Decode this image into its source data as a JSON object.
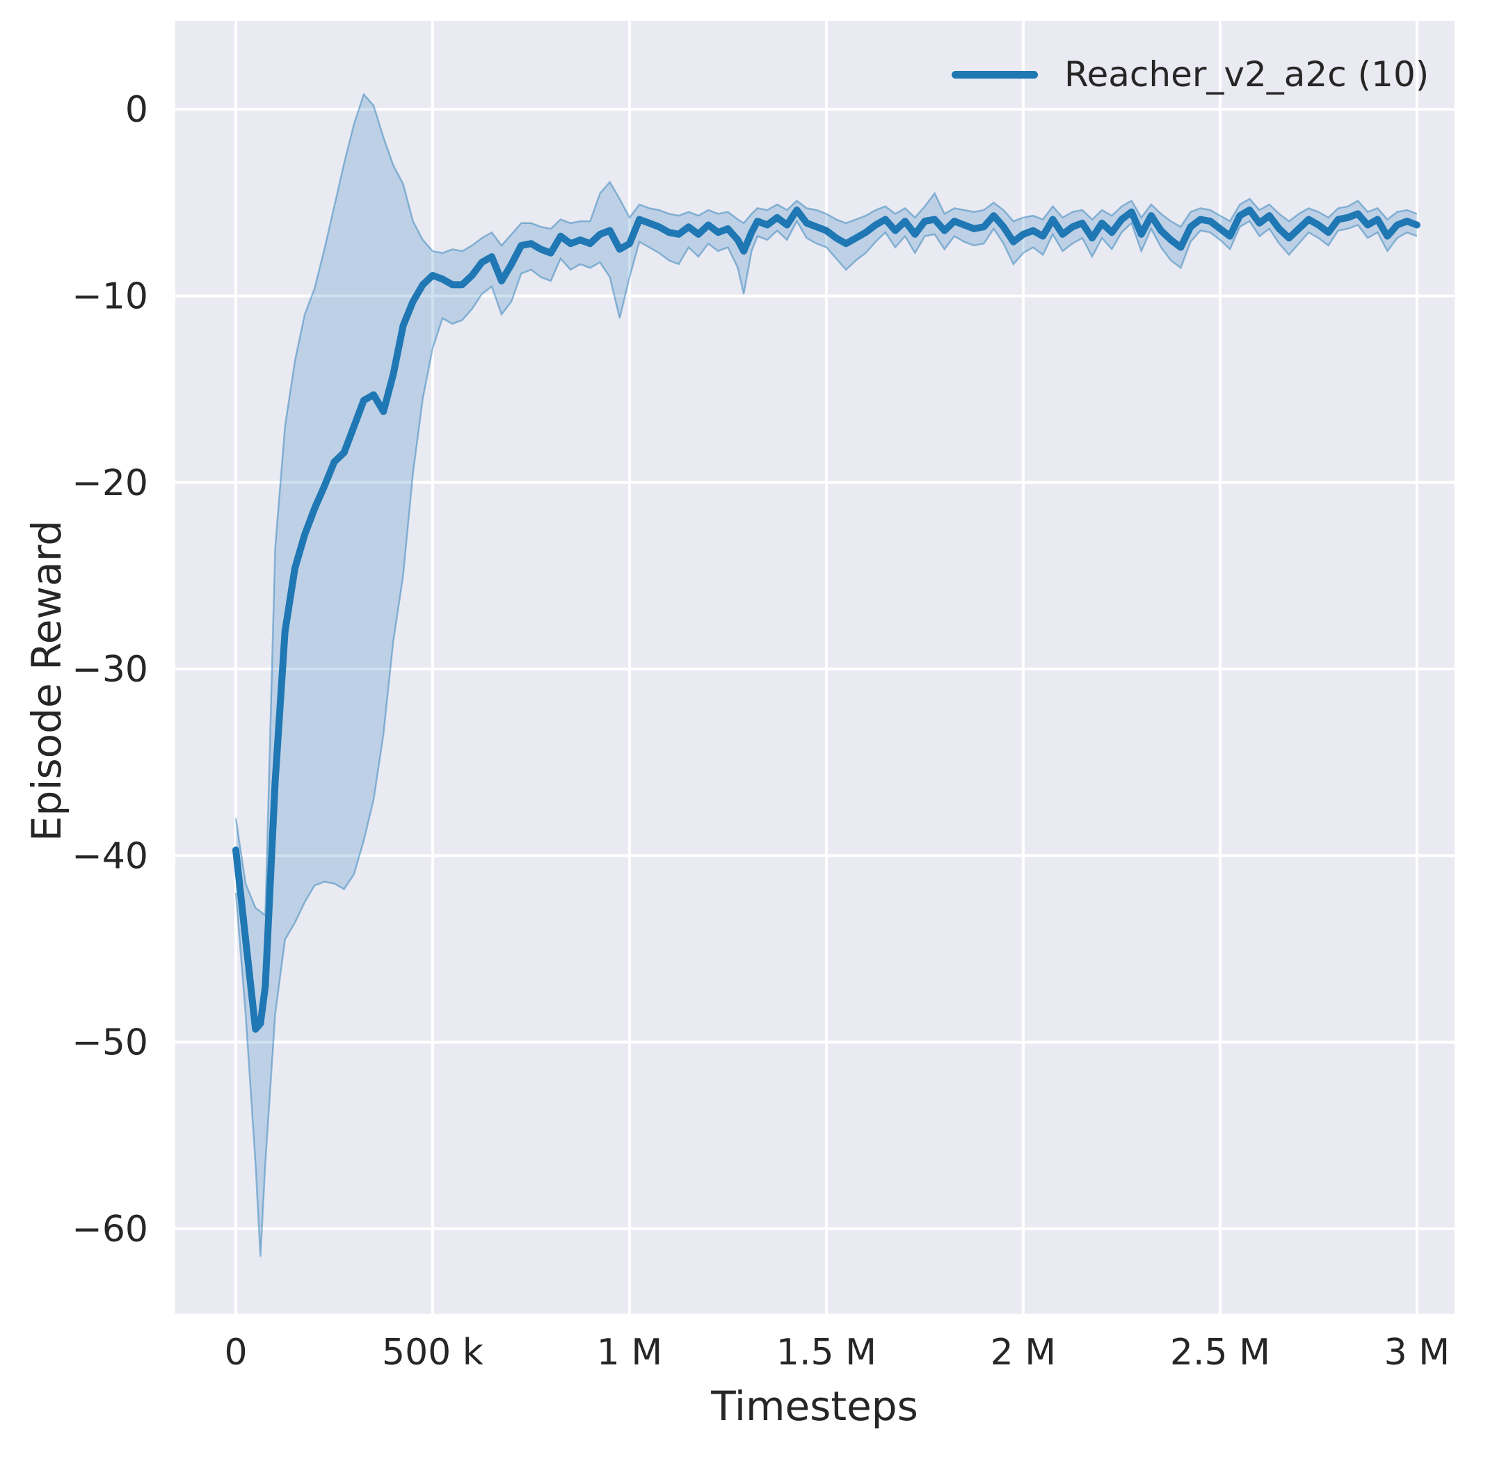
{
  "figure": {
    "background": "#ffffff",
    "plot_background": "#eaeaf2",
    "grid_color": "#ffffff",
    "text_color": "#262626"
  },
  "axes": {
    "x_label": "Timesteps",
    "y_label": "Episode Reward"
  },
  "legend": {
    "entries": [
      {
        "label": "Reacher_v2_a2c (10)",
        "color": "#1f77b4"
      }
    ]
  },
  "chart_data": {
    "type": "line",
    "title": "",
    "xlabel": "Timesteps",
    "ylabel": "Episode Reward",
    "xlim": [
      -153700,
      3095600
    ],
    "ylim": [
      -64.55,
      4.74
    ],
    "grid": true,
    "legend_position": "upper right",
    "x_ticks": [
      {
        "value": 0,
        "label": "0"
      },
      {
        "value": 500000,
        "label": "500 k"
      },
      {
        "value": 1000000,
        "label": "1 M"
      },
      {
        "value": 1500000,
        "label": "1.5 M"
      },
      {
        "value": 2000000,
        "label": "2 M"
      },
      {
        "value": 2500000,
        "label": "2.5 M"
      },
      {
        "value": 3000000,
        "label": "3 M"
      }
    ],
    "y_ticks": [
      {
        "value": 0,
        "label": "0"
      },
      {
        "value": -10,
        "label": "−10"
      },
      {
        "value": -20,
        "label": "−20"
      },
      {
        "value": -30,
        "label": "−30"
      },
      {
        "value": -40,
        "label": "−40"
      },
      {
        "value": -50,
        "label": "−50"
      },
      {
        "value": -60,
        "label": "−60"
      }
    ],
    "series": [
      {
        "name": "Reacher_v2_a2c (10)",
        "color": "#1f77b4",
        "band_fill_opacity": 0.22,
        "band_edge_opacity": 0.45,
        "points_format": [
          "timestep",
          "mean_reward",
          "band_low",
          "band_high"
        ],
        "points": [
          [
            0,
            -39.7,
            -42.0,
            -38.0
          ],
          [
            25000,
            -44.5,
            -48.5,
            -41.5
          ],
          [
            50000,
            -49.3,
            -56.5,
            -42.8
          ],
          [
            62500,
            -49.0,
            -61.5,
            -43.0
          ],
          [
            75000,
            -47.0,
            -56.5,
            -43.2
          ],
          [
            100000,
            -36.0,
            -48.5,
            -23.5
          ],
          [
            125000,
            -28.0,
            -44.5,
            -17.0
          ],
          [
            150000,
            -24.6,
            -43.6,
            -13.5
          ],
          [
            175000,
            -22.8,
            -42.5,
            -11.0
          ],
          [
            200000,
            -21.4,
            -41.6,
            -9.6
          ],
          [
            225000,
            -20.2,
            -41.4,
            -7.5
          ],
          [
            250000,
            -18.9,
            -41.5,
            -5.2
          ],
          [
            275000,
            -18.4,
            -41.8,
            -2.9
          ],
          [
            300000,
            -17.0,
            -41.0,
            -0.8
          ],
          [
            325000,
            -15.6,
            -39.2,
            0.8
          ],
          [
            350000,
            -15.3,
            -37.0,
            0.2
          ],
          [
            375000,
            -16.2,
            -33.5,
            -1.5
          ],
          [
            400000,
            -14.2,
            -28.5,
            -3.0
          ],
          [
            425000,
            -11.6,
            -25.0,
            -4.0
          ],
          [
            450000,
            -10.3,
            -19.5,
            -6.0
          ],
          [
            475000,
            -9.4,
            -15.5,
            -7.0
          ],
          [
            500000,
            -8.9,
            -12.8,
            -7.6
          ],
          [
            525000,
            -9.1,
            -11.2,
            -7.7
          ],
          [
            550000,
            -9.4,
            -11.5,
            -7.5
          ],
          [
            575000,
            -9.4,
            -11.3,
            -7.6
          ],
          [
            600000,
            -8.9,
            -10.7,
            -7.3
          ],
          [
            625000,
            -8.2,
            -9.9,
            -6.9
          ],
          [
            650000,
            -7.9,
            -9.5,
            -6.6
          ],
          [
            675000,
            -9.2,
            -11.0,
            -7.3
          ],
          [
            700000,
            -8.3,
            -10.3,
            -6.7
          ],
          [
            725000,
            -7.3,
            -8.8,
            -6.1
          ],
          [
            750000,
            -7.2,
            -8.6,
            -6.1
          ],
          [
            775000,
            -7.5,
            -9.0,
            -6.3
          ],
          [
            800000,
            -7.7,
            -9.2,
            -6.4
          ],
          [
            825000,
            -6.8,
            -8.0,
            -5.9
          ],
          [
            850000,
            -7.2,
            -8.6,
            -6.1
          ],
          [
            875000,
            -7.0,
            -8.3,
            -6.0
          ],
          [
            900000,
            -7.2,
            -8.5,
            -6.0
          ],
          [
            925000,
            -6.7,
            -8.2,
            -4.5
          ],
          [
            950000,
            -6.5,
            -9.0,
            -3.9
          ],
          [
            975000,
            -7.5,
            -11.2,
            -4.8
          ],
          [
            1000000,
            -7.2,
            -9.0,
            -5.8
          ],
          [
            1025000,
            -5.9,
            -7.1,
            -5.1
          ],
          [
            1050000,
            -6.1,
            -7.4,
            -5.3
          ],
          [
            1075000,
            -6.3,
            -7.7,
            -5.4
          ],
          [
            1100000,
            -6.6,
            -8.1,
            -5.6
          ],
          [
            1125000,
            -6.7,
            -8.3,
            -5.7
          ],
          [
            1150000,
            -6.3,
            -7.4,
            -5.5
          ],
          [
            1175000,
            -6.7,
            -7.9,
            -5.7
          ],
          [
            1200000,
            -6.2,
            -7.2,
            -5.4
          ],
          [
            1225000,
            -6.6,
            -7.6,
            -5.6
          ],
          [
            1250000,
            -6.4,
            -7.4,
            -5.5
          ],
          [
            1275000,
            -7.0,
            -8.5,
            -5.9
          ],
          [
            1290000,
            -7.6,
            -9.9,
            -6.1
          ],
          [
            1310000,
            -6.6,
            -7.6,
            -5.6
          ],
          [
            1325000,
            -6.0,
            -6.8,
            -5.3
          ],
          [
            1350000,
            -6.2,
            -7.0,
            -5.4
          ],
          [
            1375000,
            -5.8,
            -6.5,
            -5.1
          ],
          [
            1400000,
            -6.2,
            -7.0,
            -5.4
          ],
          [
            1425000,
            -5.4,
            -6.0,
            -4.9
          ],
          [
            1450000,
            -6.1,
            -6.9,
            -5.3
          ],
          [
            1475000,
            -6.3,
            -7.2,
            -5.4
          ],
          [
            1500000,
            -6.5,
            -7.4,
            -5.6
          ],
          [
            1525000,
            -6.9,
            -8.0,
            -5.9
          ],
          [
            1550000,
            -7.2,
            -8.6,
            -6.1
          ],
          [
            1575000,
            -6.9,
            -8.1,
            -5.9
          ],
          [
            1600000,
            -6.6,
            -7.7,
            -5.7
          ],
          [
            1625000,
            -6.2,
            -7.1,
            -5.4
          ],
          [
            1650000,
            -5.9,
            -6.6,
            -5.2
          ],
          [
            1675000,
            -6.5,
            -7.4,
            -5.6
          ],
          [
            1700000,
            -6.0,
            -6.8,
            -5.3
          ],
          [
            1725000,
            -6.7,
            -7.7,
            -5.8
          ],
          [
            1750000,
            -6.0,
            -6.8,
            -5.2
          ],
          [
            1775000,
            -5.9,
            -6.7,
            -4.5
          ],
          [
            1800000,
            -6.5,
            -7.5,
            -5.6
          ],
          [
            1825000,
            -6.0,
            -6.8,
            -5.3
          ],
          [
            1850000,
            -6.2,
            -7.1,
            -5.4
          ],
          [
            1875000,
            -6.4,
            -7.3,
            -5.5
          ],
          [
            1900000,
            -6.3,
            -7.2,
            -5.4
          ],
          [
            1925000,
            -5.7,
            -6.4,
            -5.0
          ],
          [
            1950000,
            -6.3,
            -7.2,
            -5.4
          ],
          [
            1975000,
            -7.1,
            -8.3,
            -6.0
          ],
          [
            2000000,
            -6.7,
            -7.7,
            -5.8
          ],
          [
            2025000,
            -6.5,
            -7.4,
            -5.7
          ],
          [
            2050000,
            -6.8,
            -7.8,
            -5.9
          ],
          [
            2075000,
            -5.9,
            -6.7,
            -5.2
          ],
          [
            2100000,
            -6.7,
            -7.6,
            -5.8
          ],
          [
            2125000,
            -6.3,
            -7.2,
            -5.5
          ],
          [
            2150000,
            -6.1,
            -6.9,
            -5.4
          ],
          [
            2175000,
            -6.9,
            -7.9,
            -5.9
          ],
          [
            2200000,
            -6.1,
            -6.9,
            -5.4
          ],
          [
            2225000,
            -6.6,
            -7.5,
            -5.7
          ],
          [
            2250000,
            -5.9,
            -6.6,
            -5.2
          ],
          [
            2275000,
            -5.5,
            -6.1,
            -4.9
          ],
          [
            2300000,
            -6.7,
            -7.6,
            -5.8
          ],
          [
            2325000,
            -5.7,
            -6.4,
            -5.1
          ],
          [
            2350000,
            -6.5,
            -7.4,
            -5.6
          ],
          [
            2375000,
            -7.0,
            -8.1,
            -6.0
          ],
          [
            2400000,
            -7.4,
            -8.5,
            -6.3
          ],
          [
            2425000,
            -6.3,
            -7.1,
            -5.5
          ],
          [
            2450000,
            -5.9,
            -6.5,
            -5.3
          ],
          [
            2475000,
            -6.0,
            -6.6,
            -5.4
          ],
          [
            2500000,
            -6.4,
            -7.0,
            -5.7
          ],
          [
            2525000,
            -6.8,
            -7.5,
            -6.0
          ],
          [
            2550000,
            -5.7,
            -6.3,
            -5.1
          ],
          [
            2575000,
            -5.4,
            -6.0,
            -4.8
          ],
          [
            2600000,
            -6.1,
            -6.8,
            -5.4
          ],
          [
            2625000,
            -5.7,
            -6.4,
            -5.1
          ],
          [
            2650000,
            -6.4,
            -7.2,
            -5.6
          ],
          [
            2675000,
            -6.9,
            -7.8,
            -6.0
          ],
          [
            2700000,
            -6.4,
            -7.2,
            -5.6
          ],
          [
            2725000,
            -5.9,
            -6.6,
            -5.3
          ],
          [
            2750000,
            -6.2,
            -6.9,
            -5.5
          ],
          [
            2775000,
            -6.6,
            -7.3,
            -5.8
          ],
          [
            2800000,
            -5.9,
            -6.5,
            -5.3
          ],
          [
            2825000,
            -5.8,
            -6.4,
            -5.2
          ],
          [
            2850000,
            -5.6,
            -6.2,
            -4.9
          ],
          [
            2875000,
            -6.2,
            -6.9,
            -5.5
          ],
          [
            2900000,
            -5.9,
            -6.6,
            -5.3
          ],
          [
            2925000,
            -6.8,
            -7.6,
            -5.9
          ],
          [
            2950000,
            -6.2,
            -6.9,
            -5.5
          ],
          [
            2975000,
            -6.0,
            -6.6,
            -5.4
          ],
          [
            3000000,
            -6.2,
            -6.8,
            -5.6
          ]
        ]
      }
    ]
  }
}
